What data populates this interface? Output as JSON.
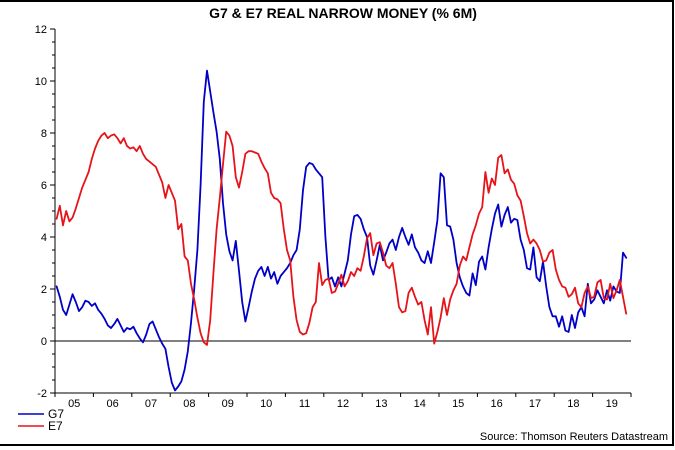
{
  "chart_data": {
    "type": "line",
    "title": "G7 & E7 REAL NARROW MONEY (% 6M)",
    "source_note": "Source: Thomson Reuters Datastream",
    "frequency": "monthly",
    "start": "2005-01",
    "x_axis": {
      "tick_labels": [
        "05",
        "06",
        "07",
        "08",
        "09",
        "10",
        "11",
        "12",
        "13",
        "14",
        "15",
        "16",
        "17",
        "18",
        "19"
      ],
      "start_year": 2005,
      "end_year": 2020
    },
    "y_axis": {
      "range": [
        -2,
        12
      ],
      "tick_values": [
        -2,
        0,
        2,
        4,
        6,
        8,
        10,
        12
      ],
      "tick_labels": [
        "-2",
        "0",
        "2",
        "4",
        "6",
        "8",
        "10",
        "12"
      ],
      "minor_step": 0.5
    },
    "zero_line": true,
    "grid": false,
    "legend_position": "bottom-left",
    "colors": {
      "g7_blue": "#0000C8",
      "e7_red": "#E61419"
    },
    "legend": [
      {
        "label": "G7",
        "color": "#0000C8"
      },
      {
        "label": "E7",
        "color": "#E61419"
      }
    ],
    "series": [
      {
        "name": "G7",
        "color": "#0000C8",
        "values": [
          2.1,
          1.7,
          1.2,
          1.0,
          1.4,
          1.8,
          1.5,
          1.15,
          1.3,
          1.55,
          1.5,
          1.35,
          1.45,
          1.2,
          1.05,
          0.85,
          0.6,
          0.5,
          0.65,
          0.85,
          0.6,
          0.35,
          0.5,
          0.45,
          0.55,
          0.3,
          0.1,
          -0.05,
          0.25,
          0.65,
          0.75,
          0.45,
          0.15,
          -0.1,
          -0.3,
          -1.0,
          -1.6,
          -1.9,
          -1.75,
          -1.55,
          -1.1,
          -0.4,
          0.7,
          2.0,
          3.5,
          6.0,
          9.2,
          10.4,
          9.6,
          8.8,
          8.05,
          7.0,
          5.3,
          4.1,
          3.45,
          3.1,
          3.85,
          2.7,
          1.5,
          0.75,
          1.3,
          1.9,
          2.4,
          2.7,
          2.85,
          2.5,
          2.85,
          2.4,
          2.65,
          2.2,
          2.5,
          2.65,
          2.8,
          3.0,
          3.3,
          3.5,
          4.3,
          5.8,
          6.7,
          6.85,
          6.8,
          6.6,
          6.45,
          6.3,
          4.0,
          2.35,
          2.45,
          2.1,
          2.45,
          2.1,
          2.6,
          3.1,
          4.1,
          4.8,
          4.85,
          4.7,
          4.3,
          4.0,
          2.9,
          2.55,
          3.1,
          3.7,
          3.1,
          3.4,
          3.75,
          3.9,
          3.5,
          4.0,
          4.35,
          4.0,
          3.7,
          4.1,
          3.6,
          3.4,
          3.1,
          3.0,
          3.45,
          3.0,
          3.8,
          4.65,
          6.45,
          6.3,
          4.45,
          4.4,
          3.9,
          3.0,
          2.45,
          2.1,
          1.85,
          1.75,
          2.6,
          2.15,
          3.05,
          3.25,
          2.75,
          3.6,
          4.3,
          4.9,
          5.25,
          4.4,
          4.85,
          5.15,
          4.55,
          4.7,
          4.65,
          3.9,
          3.5,
          2.8,
          2.75,
          3.6,
          2.45,
          2.3,
          3.05,
          2.1,
          1.3,
          0.95,
          0.95,
          0.55,
          0.95,
          0.4,
          0.35,
          1.0,
          0.5,
          1.1,
          1.3,
          0.95,
          2.2,
          1.45,
          1.6,
          1.95,
          1.7,
          1.45,
          1.95,
          1.55,
          2.1,
          1.9,
          1.85,
          3.4,
          3.2
        ]
      },
      {
        "name": "E7",
        "color": "#E61419",
        "values": [
          4.7,
          5.2,
          4.45,
          5.0,
          4.6,
          4.75,
          5.1,
          5.5,
          5.9,
          6.2,
          6.5,
          7.0,
          7.4,
          7.7,
          7.9,
          8.0,
          7.8,
          7.9,
          7.95,
          7.8,
          7.6,
          7.8,
          7.5,
          7.4,
          7.45,
          7.3,
          7.5,
          7.2,
          7.0,
          6.9,
          6.8,
          6.7,
          6.4,
          6.1,
          5.5,
          6.0,
          5.7,
          5.4,
          4.3,
          4.5,
          3.25,
          3.1,
          2.2,
          1.6,
          0.9,
          0.3,
          -0.05,
          -0.15,
          0.8,
          2.6,
          4.3,
          5.5,
          6.8,
          8.05,
          7.9,
          7.5,
          6.3,
          5.9,
          6.5,
          7.2,
          7.3,
          7.3,
          7.25,
          7.2,
          6.9,
          6.65,
          6.45,
          5.7,
          5.5,
          5.45,
          5.3,
          4.3,
          3.5,
          3.1,
          1.7,
          0.8,
          0.35,
          0.25,
          0.3,
          0.7,
          1.3,
          1.5,
          3.0,
          2.15,
          2.35,
          2.4,
          1.85,
          1.9,
          2.2,
          2.55,
          2.1,
          2.3,
          2.65,
          2.5,
          2.8,
          2.7,
          3.25,
          3.95,
          4.15,
          3.3,
          3.75,
          3.8,
          3.4,
          2.9,
          2.8,
          3.0,
          2.2,
          1.3,
          1.1,
          1.15,
          1.85,
          2.05,
          1.7,
          1.4,
          1.5,
          0.8,
          0.25,
          1.3,
          -0.1,
          0.35,
          0.9,
          1.65,
          1.0,
          1.6,
          1.95,
          2.2,
          2.9,
          3.25,
          3.1,
          3.6,
          4.1,
          4.45,
          4.9,
          5.15,
          6.5,
          5.7,
          6.25,
          6.0,
          7.05,
          7.15,
          6.45,
          6.6,
          6.2,
          6.05,
          5.6,
          5.4,
          4.8,
          4.15,
          3.75,
          3.9,
          3.75,
          3.5,
          3.05,
          3.1,
          3.4,
          3.5,
          2.75,
          2.35,
          2.1,
          2.05,
          1.7,
          1.8,
          2.05,
          1.45,
          1.3,
          1.85,
          2.1,
          1.65,
          1.7,
          2.25,
          2.35,
          1.65,
          1.6,
          2.2,
          1.65,
          1.95,
          2.35,
          1.7,
          1.05
        ]
      }
    ]
  }
}
